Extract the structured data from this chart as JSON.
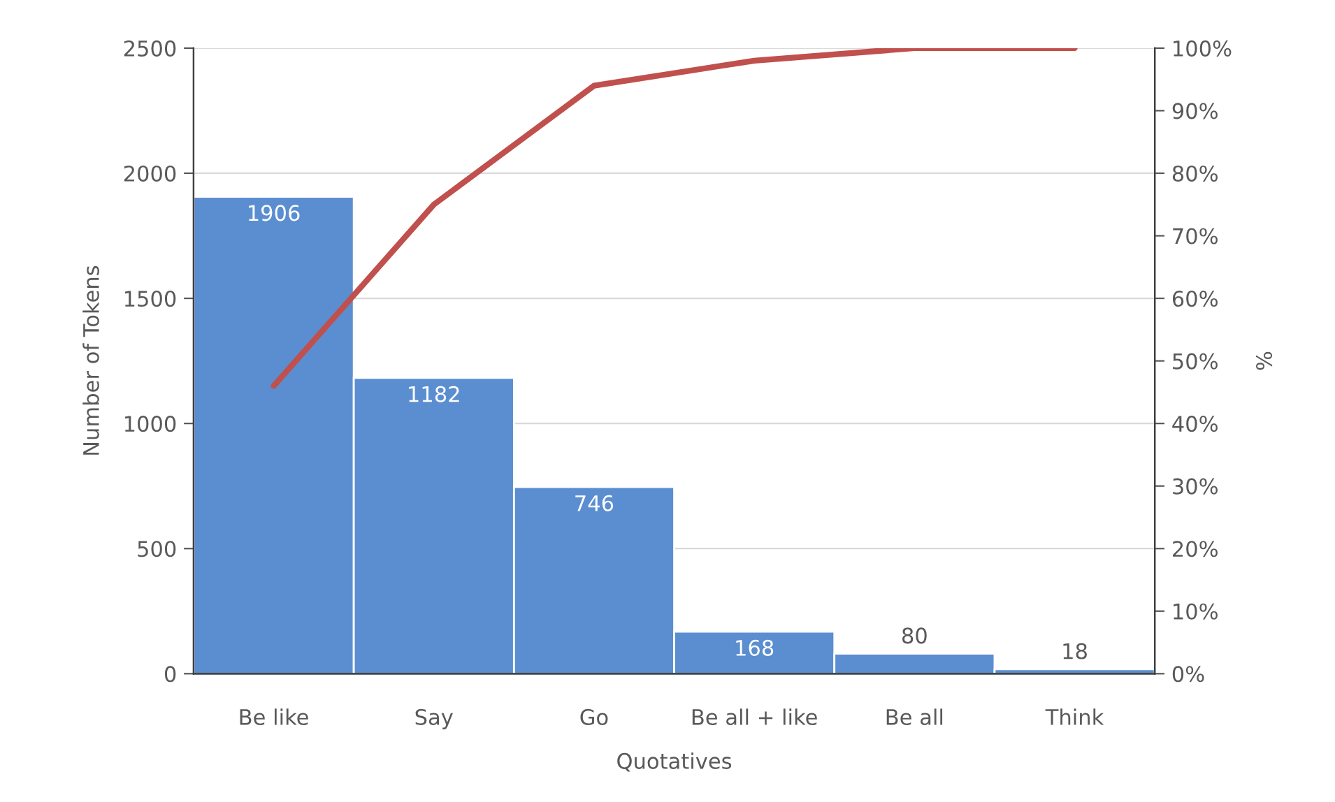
{
  "chart_data": {
    "type": "bar",
    "xlabel": "Quotatives",
    "ylabel": "Number of Tokens",
    "y2label": "%",
    "categories": [
      "Be like",
      "Say",
      "Go",
      "Be all + like",
      "Be all",
      "Think"
    ],
    "series": [
      {
        "color": "#5b8ed0",
        "values": [
          1906,
          1182,
          746,
          168,
          80,
          18
        ],
        "value_labels": [
          "1906",
          "1182",
          "746",
          "168",
          "80",
          "18"
        ]
      },
      {
        "type": "line",
        "axis": "y2",
        "color": "#c0504d",
        "values": [
          46,
          75,
          94,
          98,
          100,
          100
        ]
      }
    ],
    "ylim": [
      0,
      2500
    ],
    "yticks": [
      0,
      500,
      1000,
      1500,
      2000,
      2500
    ],
    "y2lim": [
      0,
      100
    ],
    "y2ticks": [
      {
        "value": 0,
        "label": "0%"
      },
      {
        "value": 10,
        "label": "10%"
      },
      {
        "value": 20,
        "label": "20%"
      },
      {
        "value": 30,
        "label": "30%"
      },
      {
        "value": 40,
        "label": "40%"
      },
      {
        "value": 50,
        "label": "50%"
      },
      {
        "value": 60,
        "label": "60%"
      },
      {
        "value": 70,
        "label": "70%"
      },
      {
        "value": 80,
        "label": "80%"
      },
      {
        "value": 90,
        "label": "90%"
      },
      {
        "value": 100,
        "label": "100%"
      }
    ],
    "grid": "y",
    "legend": false,
    "marker": "none"
  }
}
